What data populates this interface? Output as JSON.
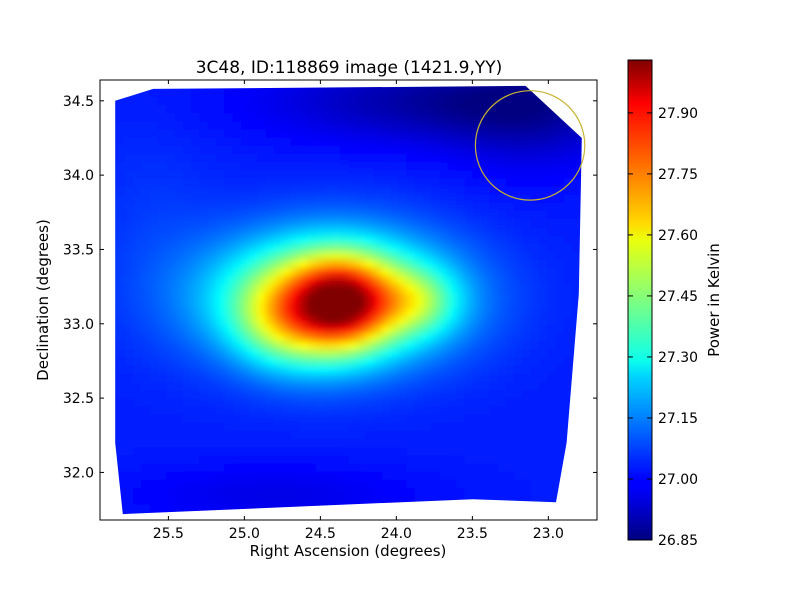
{
  "chart_data": {
    "type": "heatmap",
    "title": "3C48, ID:118869 image (1421.9,YY)",
    "xlabel": "Right Ascension (degrees)",
    "ylabel": "Declination (degrees)",
    "xlim": [
      25.95,
      22.68
    ],
    "ylim": [
      31.68,
      34.64
    ],
    "x_ticks": [
      25.5,
      25.0,
      24.5,
      24.0,
      23.5,
      23.0
    ],
    "x_tick_labels": [
      "25.5",
      "25.0",
      "24.5",
      "24.0",
      "23.5",
      "23.0"
    ],
    "y_ticks": [
      32.0,
      32.5,
      33.0,
      33.5,
      34.0,
      34.5
    ],
    "y_tick_labels": [
      "32.0",
      "32.5",
      "33.0",
      "33.5",
      "34.0",
      "34.5"
    ],
    "map_outline": [
      [
        25.85,
        34.5
      ],
      [
        25.6,
        34.58
      ],
      [
        23.15,
        34.6
      ],
      [
        22.78,
        34.25
      ],
      [
        22.8,
        33.2
      ],
      [
        22.88,
        32.2
      ],
      [
        22.95,
        31.8
      ],
      [
        23.5,
        31.82
      ],
      [
        25.8,
        31.72
      ],
      [
        25.85,
        32.2
      ]
    ],
    "colorbar": {
      "label": "Power in Kelvin",
      "min": 26.85,
      "max": 28.03,
      "ticks": [
        26.85,
        27.0,
        27.15,
        27.3,
        27.45,
        27.6,
        27.75,
        27.9
      ],
      "tick_labels": [
        "26.85",
        "27.00",
        "27.15",
        "27.30",
        "27.45",
        "27.60",
        "27.75",
        "27.90"
      ],
      "colormap": "jet"
    },
    "background_value": 27.03,
    "features": [
      {
        "ra": 24.42,
        "dec": 33.18,
        "sigma_ra": 0.55,
        "sigma_dec": 0.3,
        "amp": 0.55
      },
      {
        "ra": 24.35,
        "dec": 33.15,
        "sigma_ra": 0.22,
        "sigma_dec": 0.2,
        "amp": 0.42
      },
      {
        "ra": 24.55,
        "dec": 33.05,
        "sigma_ra": 0.3,
        "sigma_dec": 0.25,
        "amp": 0.2
      },
      {
        "ra": 23.85,
        "dec": 33.15,
        "sigma_ra": 0.18,
        "sigma_dec": 0.15,
        "amp": 0.18
      },
      {
        "ra": 24.8,
        "dec": 33.0,
        "sigma_ra": 0.2,
        "sigma_dec": 0.2,
        "amp": 0.1
      },
      {
        "ra": 23.7,
        "dec": 34.5,
        "sigma_ra": 0.8,
        "sigma_dec": 0.2,
        "amp": -0.14
      },
      {
        "ra": 23.1,
        "dec": 34.4,
        "sigma_ra": 0.4,
        "sigma_dec": 0.3,
        "amp": -0.08
      },
      {
        "ra": 24.8,
        "dec": 31.85,
        "sigma_ra": 0.7,
        "sigma_dec": 0.15,
        "amp": -0.06
      },
      {
        "ra": 25.6,
        "dec": 33.6,
        "sigma_ra": 0.3,
        "sigma_dec": 0.5,
        "amp": 0.03
      }
    ],
    "annotation_circle": {
      "ra": 23.12,
      "dec": 34.2,
      "radius_deg": 0.36,
      "color": "#c8b432"
    }
  }
}
